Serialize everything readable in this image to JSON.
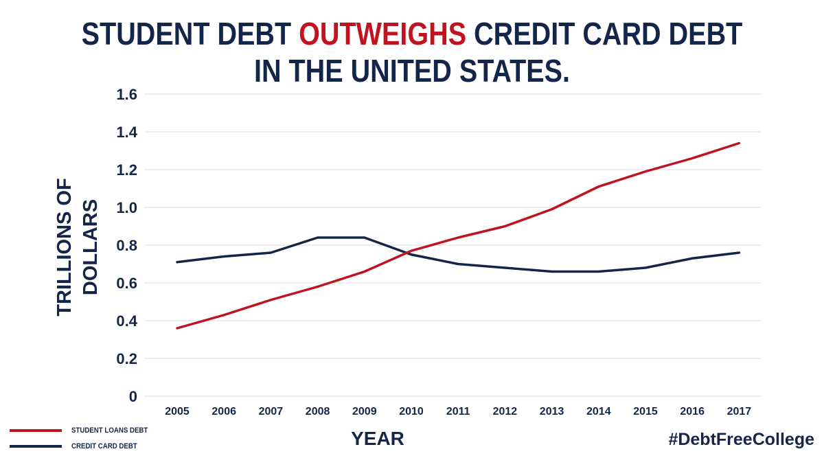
{
  "title": {
    "part1": "STUDENT DEBT ",
    "highlight": "OUTWEIGHS",
    "part2": " CREDIT CARD DEBT",
    "line2": "IN THE UNITED STATES."
  },
  "hashtag": "#DebtFreeCollege",
  "colors": {
    "student": "#c0121f",
    "credit": "#13264a",
    "grid": "#dcdcdc",
    "text": "#13264a"
  },
  "chart_data": {
    "type": "line",
    "xlabel": "YEAR",
    "ylabel": "TRILLIONS OF DOLLARS",
    "ylim": [
      0,
      1.6
    ],
    "yticks": [
      "0",
      "0.2",
      "0.4",
      "0.6",
      "0.8",
      "1.0",
      "1.2",
      "1.4",
      "1.6"
    ],
    "categories": [
      "2005",
      "2006",
      "2007",
      "2008",
      "2009",
      "2010",
      "2011",
      "2012",
      "2013",
      "2014",
      "2015",
      "2016",
      "2017"
    ],
    "grid": "horizontal",
    "legend_position": "bottom-left",
    "series": [
      {
        "name": "STUDENT LOANS DEBT",
        "color": "#c0121f",
        "values": [
          0.36,
          0.43,
          0.51,
          0.58,
          0.66,
          0.77,
          0.84,
          0.9,
          0.99,
          1.11,
          1.19,
          1.26,
          1.34
        ]
      },
      {
        "name": "CREDIT CARD DEBT",
        "color": "#13264a",
        "values": [
          0.71,
          0.74,
          0.76,
          0.84,
          0.84,
          0.75,
          0.7,
          0.68,
          0.66,
          0.66,
          0.68,
          0.73,
          0.76
        ]
      }
    ]
  }
}
